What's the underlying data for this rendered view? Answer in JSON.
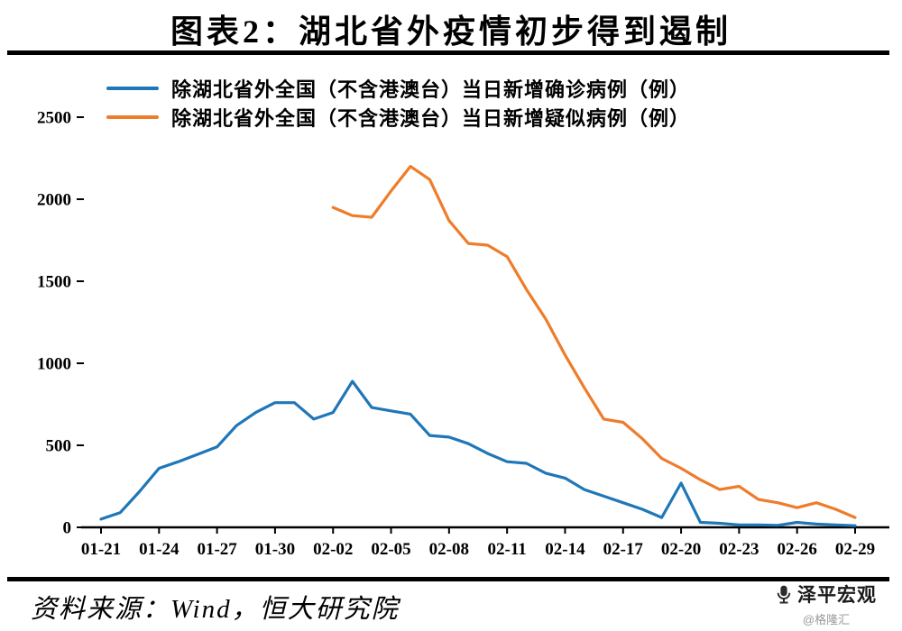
{
  "page": {
    "title": "图表2：湖北省外疫情初步得到遏制",
    "source": "资料来源：Wind，恒大研究院",
    "watermark": {
      "brand": "泽平宏观",
      "handle": "@格隆汇"
    }
  },
  "chart_data": {
    "type": "line",
    "title": "图表2：湖北省外疫情初步得到遏制",
    "xlabel": "",
    "ylabel": "",
    "ylim": [
      0,
      2500
    ],
    "yticks": [
      0,
      500,
      1000,
      1500,
      2000,
      2500
    ],
    "grid": false,
    "legend_position": "top-left",
    "x_tick_step": 3,
    "x": [
      "01-21",
      "01-22",
      "01-23",
      "01-24",
      "01-25",
      "01-26",
      "01-27",
      "01-28",
      "01-29",
      "01-30",
      "01-31",
      "02-01",
      "02-02",
      "02-03",
      "02-04",
      "02-05",
      "02-06",
      "02-07",
      "02-08",
      "02-09",
      "02-10",
      "02-11",
      "02-12",
      "02-13",
      "02-14",
      "02-15",
      "02-16",
      "02-17",
      "02-18",
      "02-19",
      "02-20",
      "02-21",
      "02-22",
      "02-23",
      "02-24",
      "02-25",
      "02-26",
      "02-27",
      "02-28",
      "02-29"
    ],
    "series": [
      {
        "name": "除湖北省外全国（不含港澳台）当日新增确诊病例（例）",
        "color": "#1F77B8",
        "values": [
          50,
          90,
          220,
          360,
          400,
          445,
          490,
          620,
          700,
          760,
          760,
          660,
          700,
          890,
          730,
          710,
          690,
          560,
          550,
          510,
          450,
          400,
          390,
          330,
          300,
          230,
          190,
          150,
          110,
          60,
          270,
          30,
          25,
          15,
          15,
          12,
          30,
          20,
          15,
          10
        ]
      },
      {
        "name": "除湖北省外全国（不含港澳台）当日新增疑似病例（例）",
        "color": "#EE7C2B",
        "values": [
          null,
          null,
          null,
          null,
          null,
          null,
          null,
          null,
          null,
          null,
          null,
          null,
          1950,
          1900,
          1890,
          2050,
          2200,
          2120,
          1870,
          1730,
          1720,
          1650,
          1450,
          1270,
          1050,
          850,
          660,
          640,
          540,
          420,
          360,
          290,
          230,
          250,
          170,
          150,
          120,
          150,
          110,
          60
        ]
      }
    ],
    "colors": {
      "axis": "#000000",
      "background": "#ffffff"
    }
  }
}
